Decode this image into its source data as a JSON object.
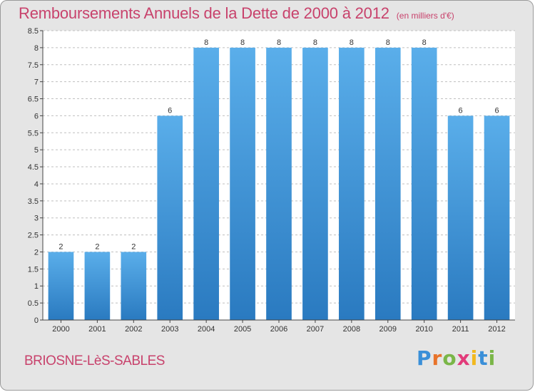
{
  "header": {
    "title": "Remboursements Annuels de la Dette de 2000 à 2012",
    "unit": "(en milliers d'€)"
  },
  "footer": {
    "commune": "BRIOSNE-LèS-SABLES",
    "brand_letters": [
      "P",
      "r",
      "o",
      "x",
      "i",
      "t",
      "i"
    ],
    "brand_colors": [
      "#3a8fd8",
      "#e8732a",
      "#7ab648",
      "#e23b7a",
      "#f2b81e",
      "#3a8fd8",
      "#7ab648"
    ]
  },
  "chart_data": {
    "type": "bar",
    "title": "Remboursements Annuels de la Dette de 2000 à 2012",
    "unit": "(en milliers d'€)",
    "categories": [
      "2000",
      "2001",
      "2002",
      "2003",
      "2004",
      "2005",
      "2006",
      "2007",
      "2008",
      "2009",
      "2010",
      "2011",
      "2012"
    ],
    "values": [
      2,
      2,
      2,
      6,
      8,
      8,
      8,
      8,
      8,
      8,
      8,
      6,
      6
    ],
    "data_labels": [
      "2",
      "2",
      "2",
      "6",
      "8",
      "8",
      "8",
      "8",
      "8",
      "8",
      "8",
      "6",
      "6"
    ],
    "ylim": [
      0,
      8.5
    ],
    "yticks": [
      0,
      0.5,
      1,
      1.5,
      2,
      2.5,
      3,
      3.5,
      4,
      4.5,
      5,
      5.5,
      6,
      6.5,
      7,
      7.5,
      8,
      8.5
    ],
    "ytick_labels": [
      "0",
      "0.5",
      "1",
      "1.5",
      "2",
      "2.5",
      "3",
      "3.5",
      "4",
      "4.5",
      "5",
      "5.5",
      "6",
      "6.5",
      "7",
      "7.5",
      "8",
      "8.5"
    ],
    "grid": true,
    "bar_color_top": "#5aaeea",
    "bar_color_bottom": "#2a7ac0",
    "plot_background": "#ffffff"
  }
}
